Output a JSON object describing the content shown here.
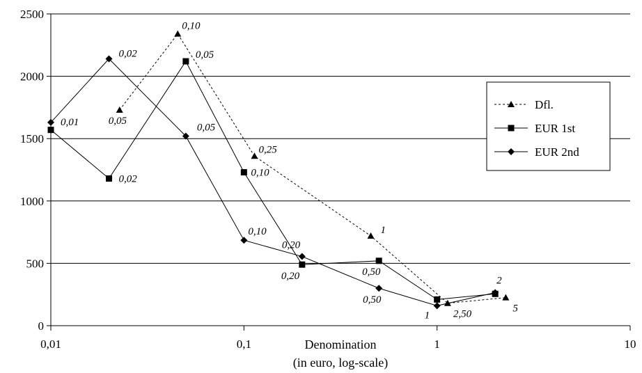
{
  "chart_data": {
    "type": "line",
    "title": "",
    "xlabel": "Denomination",
    "xlabel_sub": "(in euro, log-scale)",
    "ylabel": "",
    "x_scale": "log",
    "xlim": [
      0.01,
      10
    ],
    "ylim": [
      0,
      2500
    ],
    "x_ticks": [
      {
        "value": 0.01,
        "label": "0,01"
      },
      {
        "value": 0.1,
        "label": "0,1"
      },
      {
        "value": 1,
        "label": "1"
      },
      {
        "value": 10,
        "label": "10"
      }
    ],
    "y_ticks": [
      {
        "value": 0,
        "label": "0"
      },
      {
        "value": 500,
        "label": "500"
      },
      {
        "value": 1000,
        "label": "1000"
      },
      {
        "value": 1500,
        "label": "1500"
      },
      {
        "value": 2000,
        "label": "2000"
      },
      {
        "value": 2500,
        "label": "2500"
      }
    ],
    "grid": "horizontal",
    "legend_position": "right",
    "series": [
      {
        "name": "Dfl.",
        "marker": "triangle",
        "line_style": "dotted",
        "color": "#000000",
        "points": [
          {
            "x": 0.0227,
            "y": 1730,
            "label": "0,05"
          },
          {
            "x": 0.0454,
            "y": 2340,
            "label": "0,10"
          },
          {
            "x": 0.1134,
            "y": 1360,
            "label": "0,25"
          },
          {
            "x": 0.4538,
            "y": 720,
            "label": "1"
          },
          {
            "x": 1.1345,
            "y": 180,
            "label": "2,50"
          },
          {
            "x": 2.2689,
            "y": 225,
            "label": "5"
          }
        ]
      },
      {
        "name": "EUR 1st",
        "marker": "square",
        "line_style": "solid",
        "color": "#000000",
        "points": [
          {
            "x": 0.01,
            "y": 1570,
            "label": ""
          },
          {
            "x": 0.02,
            "y": 1180,
            "label": "0,02"
          },
          {
            "x": 0.05,
            "y": 2120,
            "label": "0,05"
          },
          {
            "x": 0.1,
            "y": 1230,
            "label": "0,10"
          },
          {
            "x": 0.2,
            "y": 490,
            "label": "0,20"
          },
          {
            "x": 0.5,
            "y": 520,
            "label": "0,50"
          },
          {
            "x": 1,
            "y": 210,
            "label": ""
          },
          {
            "x": 2,
            "y": 255,
            "label": ""
          }
        ]
      },
      {
        "name": "EUR 2nd",
        "marker": "diamond",
        "line_style": "solid",
        "color": "#000000",
        "points": [
          {
            "x": 0.01,
            "y": 1630,
            "label": "0,01"
          },
          {
            "x": 0.02,
            "y": 2140,
            "label": "0,02"
          },
          {
            "x": 0.05,
            "y": 1520,
            "label": "0,05"
          },
          {
            "x": 0.1,
            "y": 685,
            "label": "0,10"
          },
          {
            "x": 0.2,
            "y": 555,
            "label": "0,20"
          },
          {
            "x": 0.5,
            "y": 300,
            "label": "0,50"
          },
          {
            "x": 1,
            "y": 160,
            "label": "1"
          },
          {
            "x": 2,
            "y": 265,
            "label": "2"
          }
        ]
      }
    ]
  }
}
